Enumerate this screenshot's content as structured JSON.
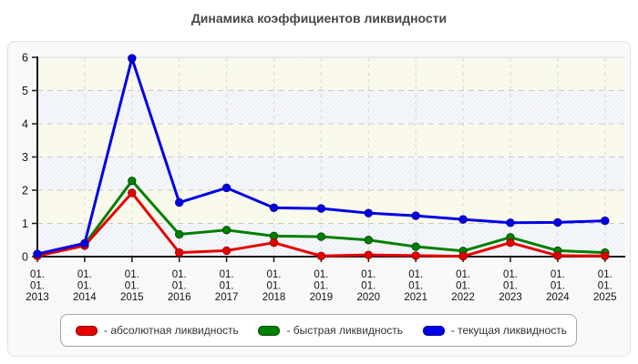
{
  "title": "Динамика коэффициентов ликвидности",
  "chart_data": {
    "type": "line",
    "x_prefix_lines": [
      "01.",
      "01."
    ],
    "categories": [
      "2013",
      "2014",
      "2015",
      "2016",
      "2017",
      "2018",
      "2019",
      "2020",
      "2021",
      "2022",
      "2023",
      "2024",
      "2025"
    ],
    "series": [
      {
        "name": "абсолютная ликвидность",
        "color": "#e60000",
        "edge": "#a00000",
        "values": [
          0.02,
          0.33,
          1.92,
          0.12,
          0.18,
          0.42,
          0.02,
          0.05,
          0.03,
          0.01,
          0.42,
          0.03,
          0.02
        ]
      },
      {
        "name": "быстрая ликвидность",
        "color": "#008000",
        "edge": "#004d00",
        "values": [
          0.05,
          0.37,
          2.28,
          0.67,
          0.8,
          0.62,
          0.6,
          0.5,
          0.3,
          0.17,
          0.58,
          0.18,
          0.12
        ]
      },
      {
        "name": "текущая ликвидность",
        "color": "#0000e6",
        "edge": "#0000a0",
        "values": [
          0.08,
          0.4,
          5.97,
          1.63,
          2.07,
          1.47,
          1.45,
          1.31,
          1.23,
          1.12,
          1.02,
          1.03,
          1.08
        ]
      }
    ],
    "draw_order": [
      1,
      0,
      2
    ],
    "ylim": [
      0,
      6
    ],
    "yticks": [
      0,
      1,
      2,
      3,
      4,
      5,
      6
    ],
    "grid": "dashed",
    "legend_position": "bottom",
    "band_colors": [
      "#eef0f7",
      "#f7f7e4"
    ],
    "axis_color": "#1a1a1a",
    "gridline_color": "#c9c9c9"
  },
  "legend": {
    "items": [
      {
        "label": "- абсолютная ликвидность",
        "color": "#e60000",
        "border": "#8b0000"
      },
      {
        "label": "- быстрая ликвидность",
        "color": "#008000",
        "border": "#044d04"
      },
      {
        "label": "- текущая ликвидность",
        "color": "#0000e6",
        "border": "#00008b"
      }
    ]
  }
}
